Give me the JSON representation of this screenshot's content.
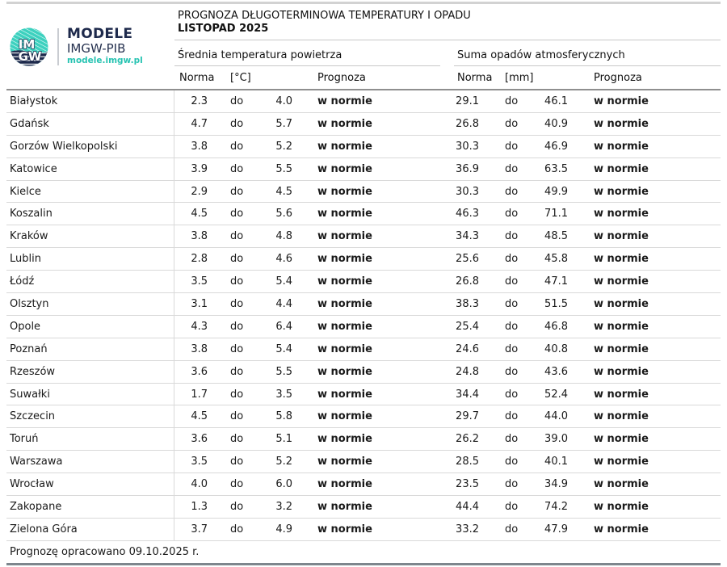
{
  "brand": {
    "logo_top": "IM",
    "logo_bottom": "GW",
    "name": "MODELE",
    "org": "IMGW-PIB",
    "url": "modele.imgw.pl",
    "navy": "#1e2a4c",
    "teal": "#3dd1bf",
    "teal_text": "#27c3b2"
  },
  "header": {
    "title": "PROGNOZA DŁUGOTERMINOWA TEMPERATURY I OPADU",
    "subtitle": "LISTOPAD 2025"
  },
  "sections": {
    "temperature": "Średnia temperatura powietrza",
    "precipitation": "Suma opadów atmosferycznych"
  },
  "columns": {
    "norma": "Norma",
    "temp_unit": "[°C]",
    "precip_unit": "[mm]",
    "prognoza": "Prognoza",
    "range_word": "do"
  },
  "rows": [
    {
      "city": "Białystok",
      "temp_min": "2.3",
      "temp_max": "4.0",
      "temp_forecast": "w normie",
      "precip_min": "29.1",
      "precip_max": "46.1",
      "precip_forecast": "w normie"
    },
    {
      "city": "Gdańsk",
      "temp_min": "4.7",
      "temp_max": "5.7",
      "temp_forecast": "w normie",
      "precip_min": "26.8",
      "precip_max": "40.9",
      "precip_forecast": "w normie"
    },
    {
      "city": "Gorzów Wielkopolski",
      "temp_min": "3.8",
      "temp_max": "5.2",
      "temp_forecast": "w normie",
      "precip_min": "30.3",
      "precip_max": "46.9",
      "precip_forecast": "w normie"
    },
    {
      "city": "Katowice",
      "temp_min": "3.9",
      "temp_max": "5.5",
      "temp_forecast": "w normie",
      "precip_min": "36.9",
      "precip_max": "63.5",
      "precip_forecast": "w normie"
    },
    {
      "city": "Kielce",
      "temp_min": "2.9",
      "temp_max": "4.5",
      "temp_forecast": "w normie",
      "precip_min": "30.3",
      "precip_max": "49.9",
      "precip_forecast": "w normie"
    },
    {
      "city": "Koszalin",
      "temp_min": "4.5",
      "temp_max": "5.6",
      "temp_forecast": "w normie",
      "precip_min": "46.3",
      "precip_max": "71.1",
      "precip_forecast": "w normie"
    },
    {
      "city": "Kraków",
      "temp_min": "3.8",
      "temp_max": "4.8",
      "temp_forecast": "w normie",
      "precip_min": "34.3",
      "precip_max": "48.5",
      "precip_forecast": "w normie"
    },
    {
      "city": "Lublin",
      "temp_min": "2.8",
      "temp_max": "4.6",
      "temp_forecast": "w normie",
      "precip_min": "25.6",
      "precip_max": "45.8",
      "precip_forecast": "w normie"
    },
    {
      "city": "Łódź",
      "temp_min": "3.5",
      "temp_max": "5.4",
      "temp_forecast": "w normie",
      "precip_min": "26.8",
      "precip_max": "47.1",
      "precip_forecast": "w normie"
    },
    {
      "city": "Olsztyn",
      "temp_min": "3.1",
      "temp_max": "4.4",
      "temp_forecast": "w normie",
      "precip_min": "38.3",
      "precip_max": "51.5",
      "precip_forecast": "w normie"
    },
    {
      "city": "Opole",
      "temp_min": "4.3",
      "temp_max": "6.4",
      "temp_forecast": "w normie",
      "precip_min": "25.4",
      "precip_max": "46.8",
      "precip_forecast": "w normie"
    },
    {
      "city": "Poznań",
      "temp_min": "3.8",
      "temp_max": "5.4",
      "temp_forecast": "w normie",
      "precip_min": "24.6",
      "precip_max": "40.8",
      "precip_forecast": "w normie"
    },
    {
      "city": "Rzeszów",
      "temp_min": "3.6",
      "temp_max": "5.5",
      "temp_forecast": "w normie",
      "precip_min": "24.8",
      "precip_max": "43.6",
      "precip_forecast": "w normie"
    },
    {
      "city": "Suwałki",
      "temp_min": "1.7",
      "temp_max": "3.5",
      "temp_forecast": "w normie",
      "precip_min": "34.4",
      "precip_max": "52.4",
      "precip_forecast": "w normie"
    },
    {
      "city": "Szczecin",
      "temp_min": "4.5",
      "temp_max": "5.8",
      "temp_forecast": "w normie",
      "precip_min": "29.7",
      "precip_max": "44.0",
      "precip_forecast": "w normie"
    },
    {
      "city": "Toruń",
      "temp_min": "3.6",
      "temp_max": "5.1",
      "temp_forecast": "w normie",
      "precip_min": "26.2",
      "precip_max": "39.0",
      "precip_forecast": "w normie"
    },
    {
      "city": "Warszawa",
      "temp_min": "3.5",
      "temp_max": "5.2",
      "temp_forecast": "w normie",
      "precip_min": "28.5",
      "precip_max": "40.1",
      "precip_forecast": "w normie"
    },
    {
      "city": "Wrocław",
      "temp_min": "4.0",
      "temp_max": "6.0",
      "temp_forecast": "w normie",
      "precip_min": "23.5",
      "precip_max": "34.9",
      "precip_forecast": "w normie"
    },
    {
      "city": "Zakopane",
      "temp_min": "1.3",
      "temp_max": "3.2",
      "temp_forecast": "w normie",
      "precip_min": "44.4",
      "precip_max": "74.2",
      "precip_forecast": "w normie"
    },
    {
      "city": "Zielona Góra",
      "temp_min": "3.7",
      "temp_max": "4.9",
      "temp_forecast": "w normie",
      "precip_min": "33.2",
      "precip_max": "47.9",
      "precip_forecast": "w normie"
    }
  ],
  "footer": {
    "note": "Prognozę opracowano 09.10.2025 r."
  }
}
